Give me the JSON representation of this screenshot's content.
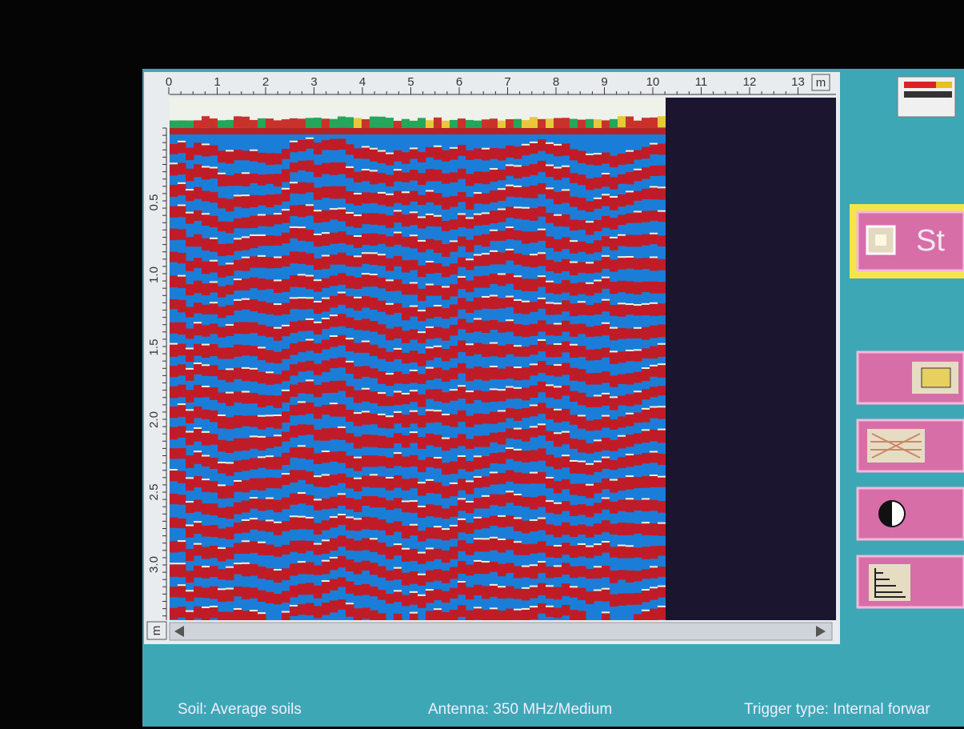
{
  "top_ruler": {
    "labels": [
      "0",
      "1",
      "2",
      "3",
      "4",
      "5",
      "6",
      "7",
      "8",
      "9",
      "10",
      "11",
      "12",
      "13"
    ],
    "unit": "m"
  },
  "left_ruler": {
    "labels": [
      "0.5",
      "1.0",
      "1.5",
      "2.0",
      "2.5",
      "3.0"
    ],
    "unit": "m"
  },
  "buttons": {
    "stop": "St"
  },
  "status_bar": {
    "soil": "Soil: Average soils",
    "antenna": "Antenna: 350 MHz/Medium",
    "trigger": "Trigger type: Internal forwar"
  }
}
